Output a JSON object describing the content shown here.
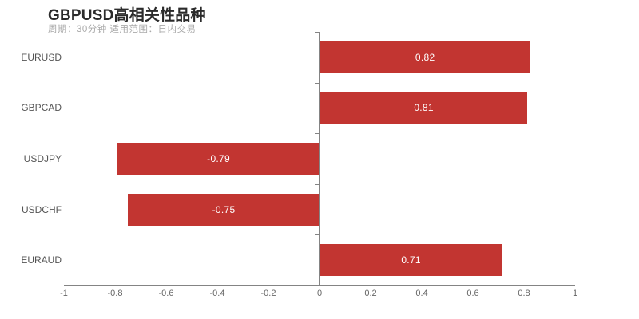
{
  "chart_data": {
    "type": "bar",
    "orientation": "horizontal",
    "title": "GBPUSD高相关性品种",
    "subtitle": "周期：30分钟 适用范围：日内交易",
    "categories": [
      "EURUSD",
      "GBPCAD",
      "USDJPY",
      "USDCHF",
      "EURAUD"
    ],
    "values": [
      0.82,
      0.81,
      -0.79,
      -0.75,
      0.71
    ],
    "value_labels": [
      "0.82",
      "0.81",
      "-0.79",
      "-0.75",
      "0.71"
    ],
    "xlim": [
      -1,
      1
    ],
    "xticks": [
      "-1",
      "-0.8",
      "-0.6",
      "-0.4",
      "-0.2",
      "0",
      "0.2",
      "0.4",
      "0.6",
      "0.8",
      "1"
    ],
    "grid": "off",
    "legend": "none",
    "value_label_position": "inside-center",
    "bar_color": "#c23531",
    "value_label_color": "#ffffff",
    "axis_color": "#848484",
    "title_color": "#2b2b2b",
    "subtitle_color": "#aaaaaa",
    "category_label_color": "#555555"
  }
}
